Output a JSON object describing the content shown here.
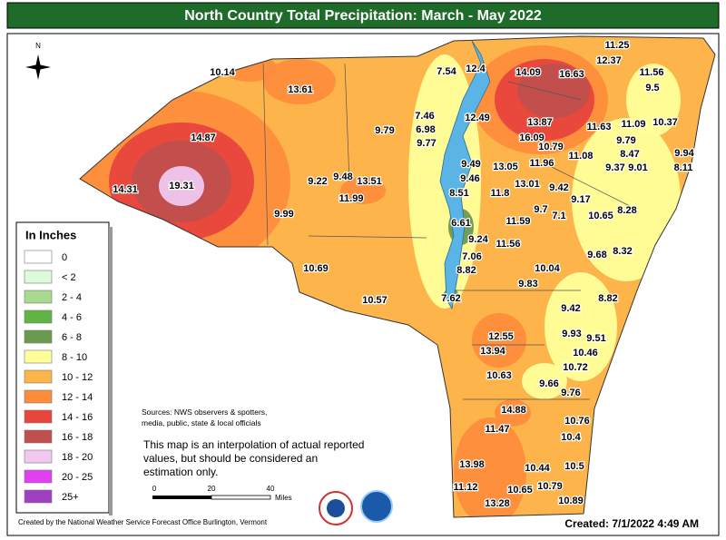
{
  "title": "North Country Total Precipitation:  March - May 2022",
  "north_label": "N",
  "legend": {
    "title": "In Inches",
    "items": [
      {
        "label": "0",
        "color": "#ffffff"
      },
      {
        "label": "< 2",
        "color": "#ddfadb"
      },
      {
        "label": "2 - 4",
        "color": "#a9d98f"
      },
      {
        "label": "4 - 6",
        "color": "#5fb444"
      },
      {
        "label": "6 - 8",
        "color": "#6b9a4e"
      },
      {
        "label": "8 - 10",
        "color": "#ffff99"
      },
      {
        "label": "10 - 12",
        "color": "#fdb44b"
      },
      {
        "label": "12 - 14",
        "color": "#fd8d3c"
      },
      {
        "label": "14 - 16",
        "color": "#e8453c"
      },
      {
        "label": "16 - 18",
        "color": "#c0504d"
      },
      {
        "label": "18 - 20",
        "color": "#f0c8f0"
      },
      {
        "label": "20 - 25",
        "color": "#e040f0"
      },
      {
        "label": "25+",
        "color": "#a040c0"
      }
    ]
  },
  "map_labels": [
    10.14,
    13.61,
    14.87,
    14.31,
    19.31,
    9.22,
    9.48,
    13.51,
    11.99,
    9.99,
    9.79,
    10.69,
    10.57,
    7.54,
    12.4,
    7.46,
    6.98,
    9.77,
    12.49,
    14.09,
    16.63,
    11.25,
    12.37,
    11.56,
    9.5,
    13.87,
    16.09,
    10.79,
    11.63,
    11.09,
    10.37,
    9.79,
    8.47,
    9.94,
    11.08,
    9.37,
    9.01,
    8.11,
    9.49,
    13.05,
    11.96,
    9.46,
    13.01,
    9.42,
    8.51,
    11.8,
    9.17,
    9.7,
    7.1,
    10.65,
    8.28,
    6.61,
    11.59,
    9.24,
    11.56,
    9.68,
    8.32,
    7.06,
    8.82,
    10.04,
    9.83,
    7.62,
    8.82,
    9.42,
    12.55,
    9.93,
    9.51,
    13.94,
    10.46,
    10.72,
    10.63,
    9.66,
    9.76,
    14.88,
    10.76,
    11.47,
    10.4,
    13.98,
    10.44,
    10.5,
    11.12,
    10.65,
    10.79,
    13.28,
    10.89
  ],
  "sources": [
    "Sources: NWS observers & spotters,",
    "media, public, state & local officials"
  ],
  "note": [
    "This map is an interpolation of actual reported",
    "values, but should be considered an",
    "estimation only."
  ],
  "scale": {
    "ticks": [
      0,
      20,
      40
    ],
    "unit": "Miles"
  },
  "credit": "Created by the National Weather Service Forecast Office Burlington, Vermont",
  "created": "Created: 7/1/2022 4:49 AM"
}
